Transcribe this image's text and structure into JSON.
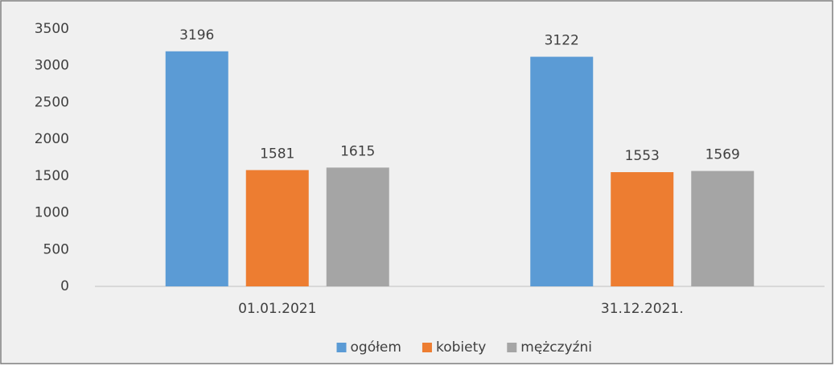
{
  "chart_data": {
    "type": "bar",
    "categories": [
      "01.01.2021",
      "31.12.2021."
    ],
    "series": [
      {
        "name": "ogółem",
        "color": "#5b9bd5",
        "values": [
          3196,
          3122
        ]
      },
      {
        "name": "kobiety",
        "color": "#ed7d31",
        "values": [
          1581,
          1553
        ]
      },
      {
        "name": "mężczyźni",
        "color": "#a5a5a5",
        "values": [
          1615,
          1569
        ]
      }
    ],
    "ylim": [
      0,
      3500
    ],
    "yticks": [
      0,
      500,
      1000,
      1500,
      2000,
      2500,
      3000,
      3500
    ],
    "grid": false,
    "legend": "bottom"
  }
}
